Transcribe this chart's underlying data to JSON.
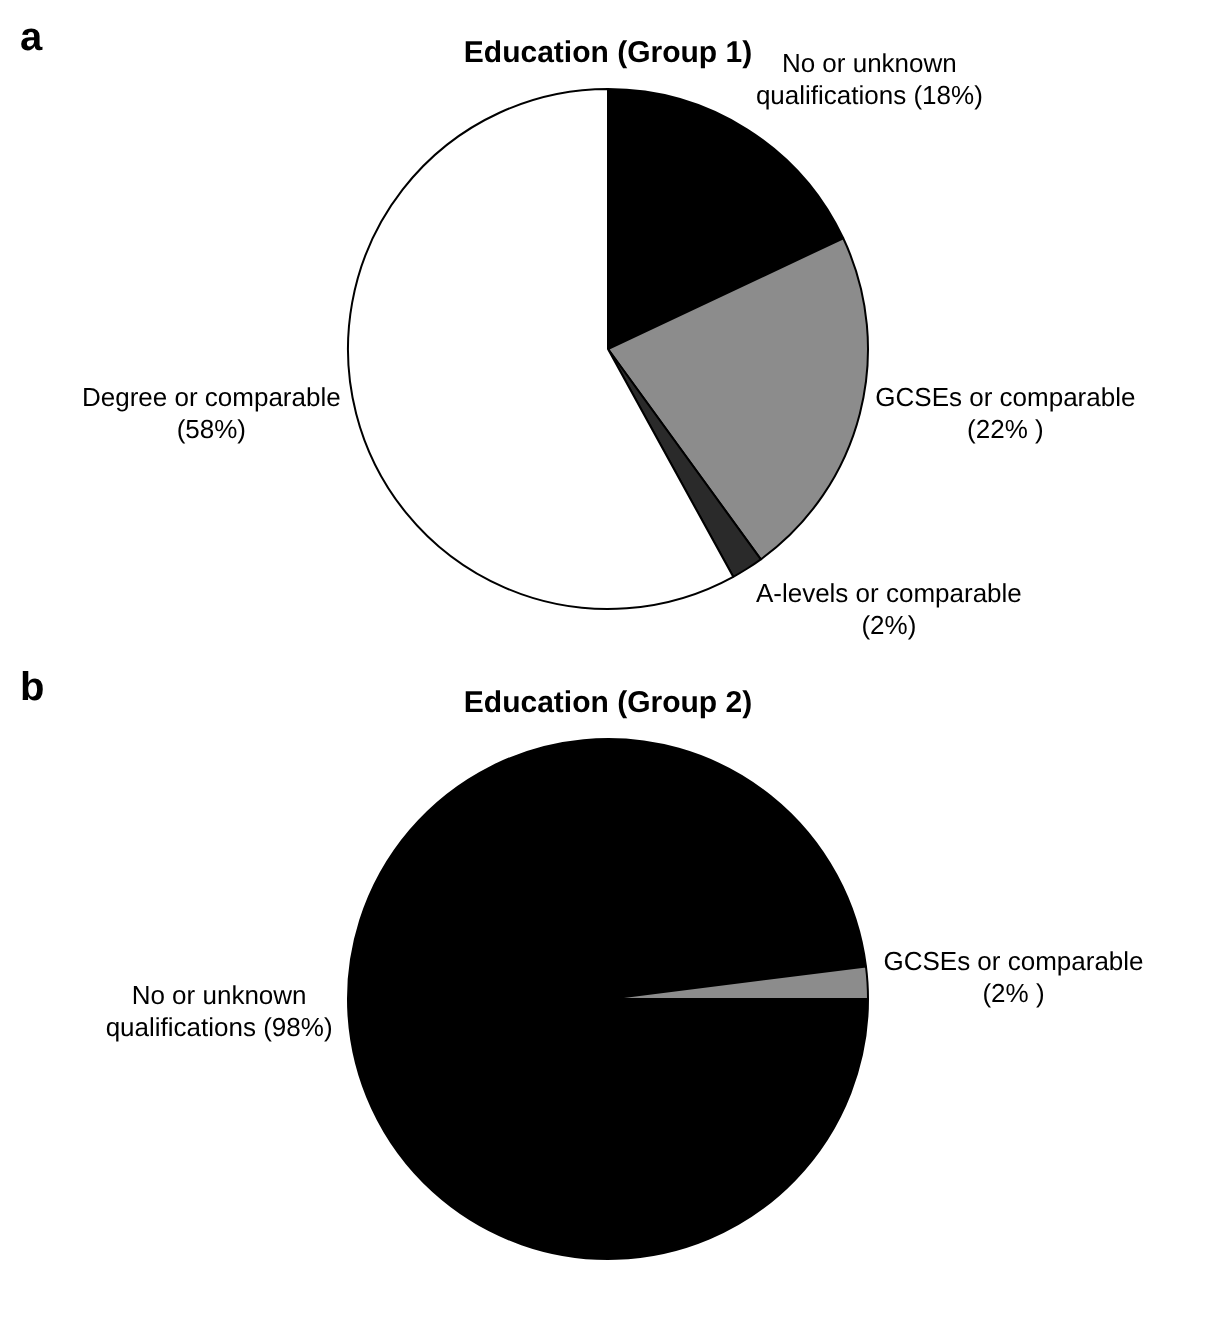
{
  "chart_data": [
    {
      "type": "pie",
      "title": "Education (Group 1)",
      "annotations": [
        "a"
      ],
      "categories": [
        "No or unknown qualifications",
        "GCSEs or comparable",
        "A-levels or comparable",
        "Degree or comparable"
      ],
      "values": [
        18,
        22,
        2,
        58
      ],
      "value_labels": [
        "(18%)",
        "(22% )",
        "(2%)",
        "(58%)"
      ],
      "colors": [
        "#000000",
        "#8c8c8c",
        "#2a2a2a",
        "#ffffff"
      ],
      "legend": false
    },
    {
      "type": "pie",
      "title": "Education (Group 2)",
      "annotations": [
        "b"
      ],
      "categories": [
        "No or unknown qualifications",
        "GCSEs or comparable"
      ],
      "values": [
        98,
        2
      ],
      "value_labels": [
        "(98%)",
        "(2% )"
      ],
      "colors": [
        "#000000",
        "#8c8c8c"
      ],
      "legend": false
    }
  ]
}
